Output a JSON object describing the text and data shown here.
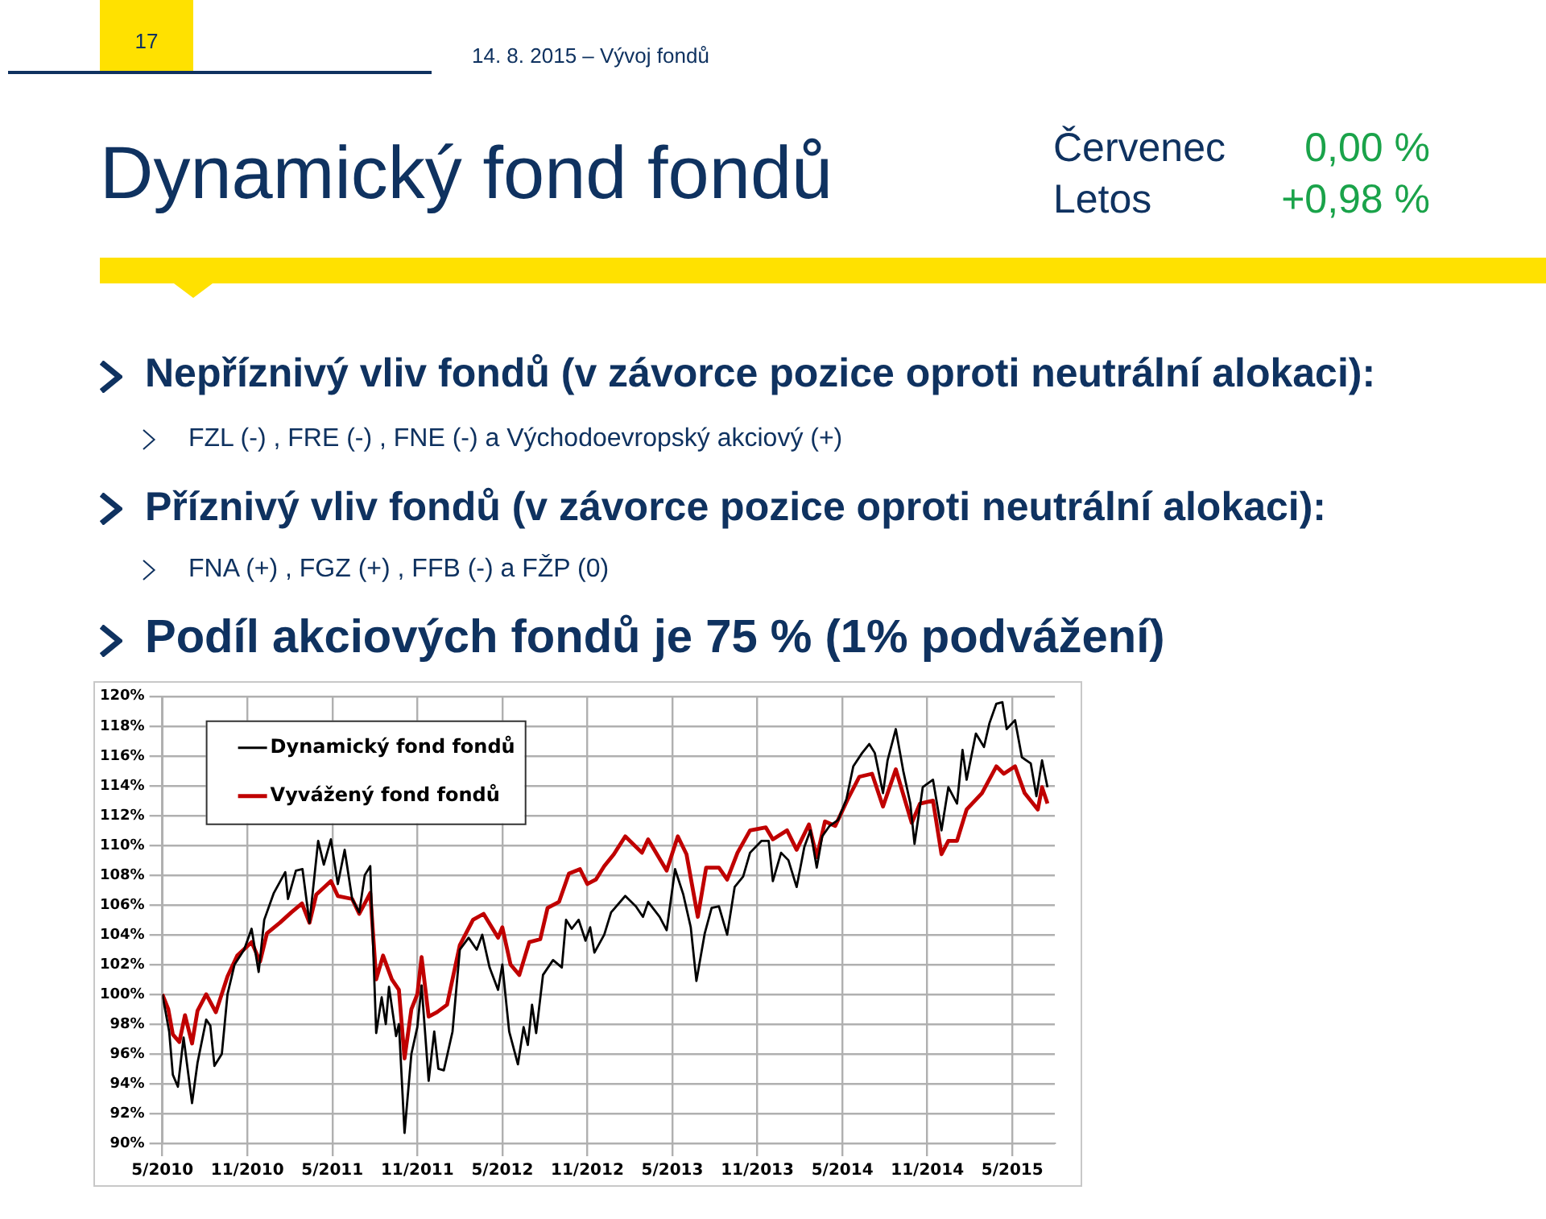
{
  "chart_data": {
    "type": "line",
    "title": "Dynamický fond fondů",
    "annotations": [
      "17",
      "14. 8. 2015 – Vývoj fondů",
      "Červenec",
      "0,00 %",
      "Letos",
      "+0,98 %",
      "Nepříznivý vliv fondů (v závorce pozice oproti neutrální alokaci):",
      "FZL (-) , FRE (-) , FNE (-) a Východoevropský akciový (+)",
      "Příznivý vliv fondů (v závorce pozice oproti neutrální alokaci):",
      "FNA (+) , FGZ (+) , FFB (-) a FŽP (0)",
      "Podíl akciových fondů je 75 % (1% podvážení)"
    ],
    "xlim": [
      "2010-05-01",
      "2015-08-01"
    ],
    "xticks": [
      {
        "value": "2010-05-01",
        "label": "5/2010"
      },
      {
        "value": "2010-11-01",
        "label": "11/2010"
      },
      {
        "value": "2011-05-01",
        "label": "5/2011"
      },
      {
        "value": "2011-11-01",
        "label": "11/2011"
      },
      {
        "value": "2012-05-01",
        "label": "5/2012"
      },
      {
        "value": "2012-11-01",
        "label": "11/2012"
      },
      {
        "value": "2013-05-01",
        "label": "5/2013"
      },
      {
        "value": "2013-11-01",
        "label": "11/2013"
      },
      {
        "value": "2014-05-01",
        "label": "5/2014"
      },
      {
        "value": "2014-11-01",
        "label": "11/2014"
      },
      {
        "value": "2015-05-01",
        "label": "5/2015"
      }
    ],
    "ylim": [
      90,
      120
    ],
    "yticks": [
      {
        "value": 90,
        "label": "90%"
      },
      {
        "value": 92,
        "label": "92%"
      },
      {
        "value": 94,
        "label": "94%"
      },
      {
        "value": 96,
        "label": "96%"
      },
      {
        "value": 98,
        "label": "98%"
      },
      {
        "value": 100,
        "label": "100%"
      },
      {
        "value": 102,
        "label": "102%"
      },
      {
        "value": 104,
        "label": "104%"
      },
      {
        "value": 106,
        "label": "106%"
      },
      {
        "value": 108,
        "label": "108%"
      },
      {
        "value": 110,
        "label": "110%"
      },
      {
        "value": 112,
        "label": "112%"
      },
      {
        "value": 114,
        "label": "114%"
      },
      {
        "value": 116,
        "label": "116%"
      },
      {
        "value": 118,
        "label": "118%"
      },
      {
        "value": 120,
        "label": "120%"
      }
    ],
    "grid": true,
    "legend": "top left",
    "marker": "none",
    "line_style": "solid",
    "series": [
      {
        "name": "Dynamický fond fondů",
        "color": "#000000",
        "x": [
          "2010-05-01",
          "2010-05-16",
          "2010-05-24",
          "2010-06-04",
          "2010-06-16",
          "2010-07-04",
          "2010-07-16",
          "2010-08-04",
          "2010-08-13",
          "2010-08-22",
          "2010-09-07",
          "2010-09-19",
          "2010-10-04",
          "2010-10-25",
          "2010-11-10",
          "2010-11-25",
          "2010-12-07",
          "2010-12-28",
          "2011-01-22",
          "2011-01-28",
          "2011-02-13",
          "2011-02-26",
          "2011-03-13",
          "2011-04-01",
          "2011-04-13",
          "2011-04-28",
          "2011-05-13",
          "2011-05-28",
          "2011-06-13",
          "2011-06-28",
          "2011-07-10",
          "2011-07-22",
          "2011-08-04",
          "2011-08-16",
          "2011-08-25",
          "2011-09-01",
          "2011-09-16",
          "2011-09-22",
          "2011-10-04",
          "2011-10-19",
          "2011-11-01",
          "2011-11-10",
          "2011-11-25",
          "2011-12-07",
          "2011-12-16",
          "2011-12-28",
          "2012-01-16",
          "2012-02-01",
          "2012-02-19",
          "2012-03-07",
          "2012-03-19",
          "2012-04-04",
          "2012-04-22",
          "2012-05-01",
          "2012-05-16",
          "2012-06-04",
          "2012-06-16",
          "2012-06-25",
          "2012-07-04",
          "2012-07-13",
          "2012-07-28",
          "2012-08-19",
          "2012-09-07",
          "2012-09-16",
          "2012-09-28",
          "2012-10-13",
          "2012-10-28",
          "2012-11-07",
          "2012-11-16",
          "2012-12-07",
          "2012-12-22",
          "2013-01-22",
          "2013-02-13",
          "2013-02-27",
          "2013-03-10",
          "2013-04-04",
          "2013-04-19",
          "2013-05-07",
          "2013-05-25",
          "2013-06-10",
          "2013-06-22",
          "2013-07-10",
          "2013-07-25",
          "2013-08-10",
          "2013-08-28",
          "2013-09-13",
          "2013-10-01",
          "2013-10-16",
          "2013-11-10",
          "2013-11-25",
          "2013-12-04",
          "2013-12-22",
          "2014-01-07",
          "2014-01-25",
          "2014-02-10",
          "2014-02-22",
          "2014-03-07",
          "2014-03-19",
          "2014-04-04",
          "2014-04-22",
          "2014-05-10",
          "2014-05-25",
          "2014-06-13",
          "2014-06-28",
          "2014-07-10",
          "2014-07-28",
          "2014-08-07",
          "2014-08-25",
          "2014-09-10",
          "2014-09-25",
          "2014-10-04",
          "2014-10-22",
          "2014-11-13",
          "2014-12-01",
          "2014-12-16",
          "2015-01-04",
          "2015-01-16",
          "2015-01-25",
          "2015-02-13",
          "2015-03-01",
          "2015-03-13",
          "2015-03-28",
          "2015-04-10",
          "2015-04-19",
          "2015-05-07",
          "2015-05-22",
          "2015-06-10",
          "2015-06-22",
          "2015-07-04",
          "2015-07-16"
        ],
        "values": [
          100,
          97.5,
          94.6,
          93.8,
          97.1,
          92.7,
          95.4,
          98.3,
          97.9,
          95.2,
          96,
          100,
          102,
          103,
          104.4,
          101.5,
          105,
          106.8,
          108.2,
          106.4,
          108.3,
          108.4,
          104.8,
          110.3,
          108.7,
          110.4,
          107.4,
          109.7,
          106.4,
          105.5,
          108,
          108.6,
          97.4,
          99.8,
          98,
          100.5,
          97.2,
          98,
          90.7,
          96,
          97.8,
          100.6,
          94.2,
          97.5,
          95,
          94.9,
          97.5,
          103,
          103.8,
          103,
          104,
          101.8,
          100.3,
          102,
          97.5,
          95.3,
          97.8,
          96.6,
          99.3,
          97.4,
          101.3,
          102.3,
          101.8,
          105,
          104.4,
          105,
          103.6,
          104.5,
          102.8,
          104,
          105.5,
          106.6,
          105.9,
          105.2,
          106.2,
          105.2,
          104.3,
          108.4,
          106.7,
          104.5,
          100.9,
          104.1,
          105.8,
          105.9,
          104,
          107.2,
          107.9,
          109.5,
          110.3,
          110.3,
          107.6,
          109.5,
          109,
          107.2,
          109.9,
          111,
          108.5,
          110.6,
          111.3,
          111.7,
          113.1,
          115.3,
          116.2,
          116.8,
          116.2,
          113.5,
          115.7,
          117.8,
          115,
          112.8,
          110.1,
          113.9,
          114.4,
          111,
          113.9,
          112.8,
          116.4,
          114.4,
          117.5,
          116.6,
          118.2,
          119.5,
          119.6,
          117.8,
          118.4,
          115.9,
          115.5,
          113.3,
          115.7,
          113.9
        ]
      },
      {
        "name": "Vyvážený fond fondů",
        "color": "#c00000",
        "x": [
          "2010-05-01",
          "2010-05-14",
          "2010-05-24",
          "2010-06-07",
          "2010-06-19",
          "2010-07-04",
          "2010-07-16",
          "2010-08-04",
          "2010-08-25",
          "2010-09-19",
          "2010-10-10",
          "2010-11-10",
          "2010-11-28",
          "2010-12-13",
          "2011-01-10",
          "2011-02-04",
          "2011-02-25",
          "2011-03-13",
          "2011-03-28",
          "2011-04-28",
          "2011-05-13",
          "2011-06-13",
          "2011-06-28",
          "2011-07-22",
          "2011-08-04",
          "2011-08-19",
          "2011-09-07",
          "2011-09-22",
          "2011-10-04",
          "2011-10-19",
          "2011-11-01",
          "2011-11-10",
          "2011-11-25",
          "2011-12-13",
          "2012-01-04",
          "2012-02-01",
          "2012-02-28",
          "2012-03-22",
          "2012-04-22",
          "2012-05-01",
          "2012-05-19",
          "2012-06-07",
          "2012-06-28",
          "2012-07-22",
          "2012-08-07",
          "2012-09-01",
          "2012-09-22",
          "2012-10-16",
          "2012-11-01",
          "2012-11-19",
          "2012-12-07",
          "2012-12-28",
          "2013-01-22",
          "2013-02-25",
          "2013-03-10",
          "2013-04-19",
          "2013-05-13",
          "2013-06-01",
          "2013-06-25",
          "2013-07-13",
          "2013-08-10",
          "2013-08-28",
          "2013-09-19",
          "2013-10-16",
          "2013-11-19",
          "2013-12-04",
          "2014-01-04",
          "2014-01-25",
          "2014-02-19",
          "2014-03-07",
          "2014-03-25",
          "2014-04-16",
          "2014-05-13",
          "2014-06-07",
          "2014-07-04",
          "2014-07-28",
          "2014-08-25",
          "2014-09-28",
          "2014-10-16",
          "2014-11-13",
          "2014-12-01",
          "2014-12-16",
          "2015-01-04",
          "2015-01-25",
          "2015-02-25",
          "2015-03-28",
          "2015-04-13",
          "2015-05-07",
          "2015-05-28",
          "2015-06-25",
          "2015-07-04",
          "2015-07-16"
        ],
        "values": [
          100,
          99,
          97.3,
          96.8,
          98.6,
          96.7,
          98.9,
          100,
          98.8,
          101.2,
          102.6,
          103.5,
          102.2,
          104.1,
          104.8,
          105.5,
          106.1,
          104.8,
          106.7,
          107.6,
          106.6,
          106.4,
          105.4,
          106.8,
          101,
          102.6,
          101,
          100.3,
          95.7,
          99,
          100,
          102.5,
          98.5,
          98.8,
          99.3,
          103.3,
          105,
          105.4,
          103.8,
          104.5,
          102,
          101.3,
          103.5,
          103.7,
          105.8,
          106.2,
          108.1,
          108.4,
          107.4,
          107.7,
          108.6,
          109.4,
          110.6,
          109.5,
          110.4,
          108.3,
          110.6,
          109.4,
          105.2,
          108.5,
          108.5,
          107.7,
          109.5,
          111,
          111.2,
          110.4,
          111,
          109.7,
          111.4,
          109.2,
          111.6,
          111.3,
          113.1,
          114.6,
          114.8,
          112.6,
          115.1,
          111.5,
          112.8,
          113,
          109.4,
          110.3,
          110.3,
          112.4,
          113.5,
          115.3,
          114.8,
          115.3,
          113.5,
          112.4,
          113.9,
          112.8
        ]
      }
    ]
  }
}
